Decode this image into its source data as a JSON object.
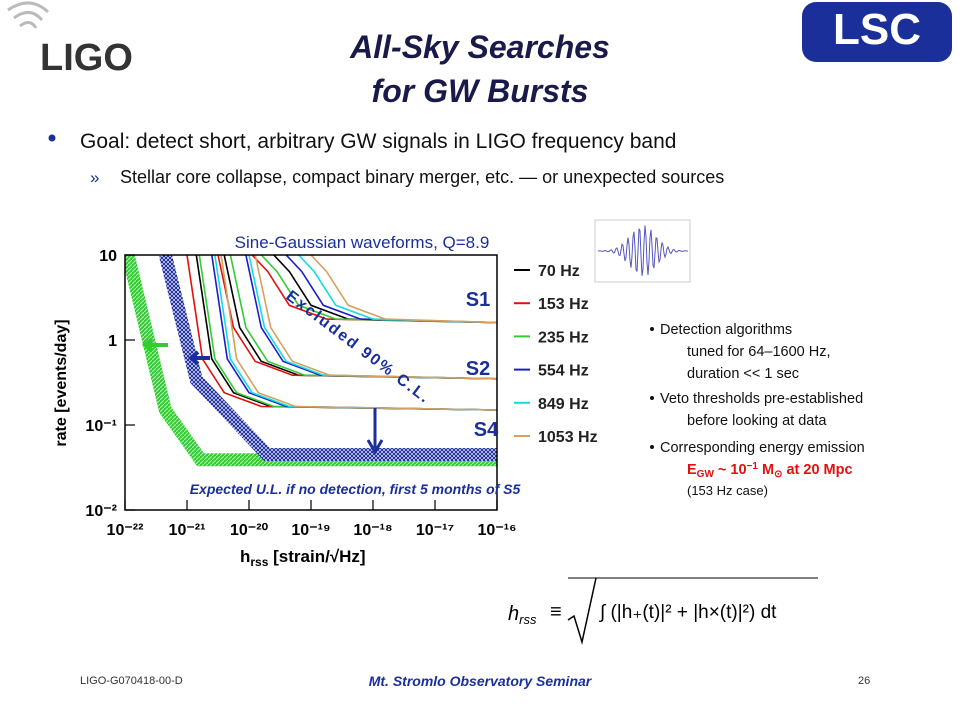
{
  "header": {
    "logo_left": "LIGO",
    "logo_right": "LSC",
    "title_lines": [
      "All-Sky Searches",
      "for GW Bursts"
    ]
  },
  "bullets": {
    "main": "Goal: detect short, arbitrary GW signals in LIGO frequency band",
    "sub_marker": "»",
    "sub": "Stellar core collapse, compact binary merger, etc. — or unexpected sources"
  },
  "chart_data": {
    "type": "line",
    "title": "Sine-Gaussian waveforms, Q=8.9",
    "y_label": "rate [events/day]",
    "x_label": {
      "main": "h",
      "sub": "rss",
      "rest": " [strain/√Hz]"
    },
    "log_x": true,
    "log_y": true,
    "xlim": [
      1e-22,
      1e-16
    ],
    "xticks": [
      {
        "value": 1e-22,
        "label": "10⁻²²"
      },
      {
        "value": 1e-21,
        "label": "10⁻²¹"
      },
      {
        "value": 1e-20,
        "label": "10⁻²⁰"
      },
      {
        "value": 1e-19,
        "label": "10⁻¹⁹"
      },
      {
        "value": 1e-18,
        "label": "10⁻¹⁸"
      },
      {
        "value": 1e-17,
        "label": "10⁻¹⁷"
      },
      {
        "value": 1e-16,
        "label": "10⁻¹⁶"
      }
    ],
    "ylim": [
      0.01,
      10
    ],
    "yticks": [
      {
        "value": 0.01,
        "label": "10⁻²"
      },
      {
        "value": 0.1,
        "label": "10⁻¹"
      },
      1,
      10
    ],
    "runs": [
      "S1",
      "S2",
      "S4"
    ],
    "annotations": {
      "excluded": "Excluded 90% C.L.",
      "expected": "Expected U.L. if no detection, first 5 months of S5"
    },
    "series": [
      {
        "name": "70 Hz",
        "color": "#000000",
        "x": [
          [
            2.51e-20,
            4.47e-20,
            1e-19,
            3.98e-19,
            1e-16
          ],
          [
            3.98e-21,
            7.08e-21,
            1.58e-20,
            6.31e-20,
            1e-16
          ],
          [
            1.41e-21,
            2.51e-21,
            5.62e-21,
            2.24e-20,
            1e-16
          ]
        ],
        "values": [
          [
            10,
            6.4,
            2.56,
            1.76,
            1.6
          ],
          [
            10,
            1.4,
            0.56,
            0.385,
            0.35
          ],
          [
            10,
            0.6,
            0.24,
            0.165,
            0.15
          ]
        ]
      },
      {
        "name": "153 Hz",
        "color": "#e01010",
        "x": [
          [
            1.12e-20,
            2e-20,
            4.47e-20,
            1.78e-19,
            1e-16
          ],
          [
            3.16e-21,
            5.62e-21,
            1.26e-20,
            5.01e-20,
            1e-16
          ],
          [
            1e-21,
            1.78e-21,
            3.98e-21,
            1.58e-20,
            1e-16
          ]
        ],
        "values": [
          [
            10,
            6.4,
            2.56,
            1.76,
            1.6
          ],
          [
            10,
            1.4,
            0.56,
            0.385,
            0.35
          ],
          [
            10,
            0.6,
            0.24,
            0.165,
            0.15
          ]
        ]
      },
      {
        "name": "235 Hz",
        "color": "#33cc33",
        "x": [
          [
            1.58e-20,
            2.82e-20,
            6.31e-20,
            2.51e-19,
            1e-16
          ],
          [
            5.01e-21,
            8.91e-21,
            2e-20,
            7.94e-20,
            1e-16
          ],
          [
            1.58e-21,
            2.82e-21,
            6.31e-21,
            2.51e-20,
            1e-16
          ]
        ],
        "values": [
          [
            10,
            6.4,
            2.56,
            1.76,
            1.6
          ],
          [
            10,
            1.4,
            0.56,
            0.385,
            0.35
          ],
          [
            10,
            0.6,
            0.24,
            0.165,
            0.15
          ]
        ]
      },
      {
        "name": "554 Hz",
        "color": "#1c1cc8",
        "x": [
          [
            3.98e-20,
            7.08e-20,
            1.58e-19,
            6.31e-19,
            1e-16
          ],
          [
            8.91e-21,
            1.58e-20,
            3.55e-20,
            1.41e-19,
            1e-16
          ],
          [
            2.51e-21,
            4.47e-21,
            1e-20,
            3.98e-20,
            1e-16
          ]
        ],
        "values": [
          [
            10,
            6.4,
            2.56,
            1.76,
            1.6
          ],
          [
            10,
            1.4,
            0.56,
            0.385,
            0.35
          ],
          [
            10,
            0.6,
            0.24,
            0.165,
            0.15
          ]
        ]
      },
      {
        "name": "849 Hz",
        "color": "#11dddd",
        "x": [
          [
            6.31e-20,
            1.12e-19,
            2.51e-19,
            1e-18,
            1e-16
          ],
          [
            1e-20,
            1.78e-20,
            3.98e-20,
            1.58e-19,
            1e-16
          ],
          [
            2.82e-21,
            5.01e-21,
            1.12e-20,
            4.47e-20,
            1e-16
          ]
        ],
        "values": [
          [
            10,
            6.4,
            2.56,
            1.76,
            1.6
          ],
          [
            10,
            1.4,
            0.56,
            0.385,
            0.35
          ],
          [
            10,
            0.6,
            0.24,
            0.165,
            0.15
          ]
        ]
      },
      {
        "name": "1053 Hz",
        "color": "#d6a060",
        "x": [
          [
            1e-19,
            1.78e-19,
            3.98e-19,
            1.58e-18,
            1e-16
          ],
          [
            1.26e-20,
            2.24e-20,
            5.01e-20,
            2e-19,
            1e-16
          ],
          [
            3.55e-21,
            6.31e-21,
            1.41e-20,
            5.62e-20,
            1e-16
          ]
        ],
        "values": [
          [
            10,
            6.4,
            2.56,
            1.76,
            1.6
          ],
          [
            10,
            1.4,
            0.56,
            0.385,
            0.35
          ],
          [
            10,
            0.6,
            0.24,
            0.165,
            0.15
          ]
        ]
      }
    ],
    "bands": [
      {
        "color": "#33cc33",
        "x": [
          1.12e-22,
          4.47e-22,
          1.66e-21,
          1e-16
        ],
        "values": [
          10,
          0.15,
          0.039,
          0.039
        ]
      },
      {
        "color": "#2030a0",
        "x": [
          4.47e-22,
          1.41e-21,
          1.95e-20,
          1e-16
        ],
        "values": [
          10,
          0.34,
          0.045,
          0.045
        ]
      }
    ]
  },
  "notes": [
    [
      "Detection algorithms",
      "tuned for 64–1600 Hz,",
      "duration << 1 sec"
    ],
    [
      "Veto thresholds pre-established",
      "before looking at data"
    ],
    [
      "Corresponding energy emission"
    ]
  ],
  "energy": [
    "E",
    "GW",
    " ~ 10",
    "−1",
    " M",
    "⊙",
    " at 20 Mpc"
  ],
  "energy_note": "(153 Hz case)",
  "formula": {
    "lhs": "h",
    "lhs_sub": "rss",
    "op": "≡",
    "body": "∫ (|h₊(t)|² + |h×(t)|²) dt"
  },
  "footer": {
    "doc_id": "LIGO-G070418-00-D",
    "event": "Mt. Stromlo Observatory Seminar",
    "page": "26"
  }
}
